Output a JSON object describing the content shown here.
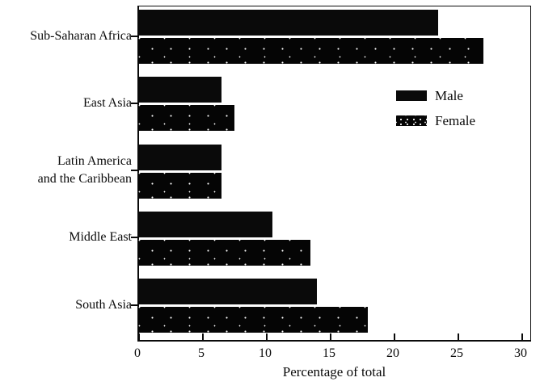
{
  "chart_data": {
    "type": "bar",
    "orientation": "horizontal",
    "title": "",
    "xlabel": "Percentage of total",
    "ylabel": "",
    "categories": [
      "Sub-Saharan Africa",
      "East Asia",
      "Latin America and the Caribbean",
      "Middle East",
      "South Asia"
    ],
    "category_label_lines": [
      [
        "Sub-Saharan Africa"
      ],
      [
        "East Asia"
      ],
      [
        "Latin America",
        "and the Caribbean"
      ],
      [
        "Middle East"
      ],
      [
        "South Asia"
      ]
    ],
    "series": [
      {
        "name": "Male",
        "values": [
          23.5,
          6.5,
          6.5,
          10.5,
          14
        ]
      },
      {
        "name": "Female",
        "values": [
          27,
          7.5,
          6.5,
          13.5,
          18
        ]
      }
    ],
    "x_ticks": [
      0,
      5,
      10,
      15,
      20,
      25,
      30
    ],
    "xlim": [
      0,
      30.8
    ],
    "grid": false,
    "legend_position": "inside-upper-right",
    "bar_color": "#0a0a0a",
    "female_pattern": "black with white stipple dots",
    "background_color": "#ffffff"
  }
}
